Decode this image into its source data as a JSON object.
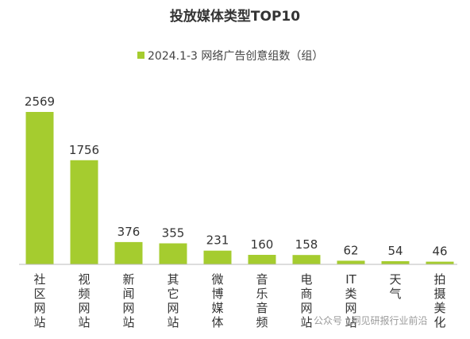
{
  "chart_data": {
    "type": "bar",
    "title": "投放媒体类型TOP10",
    "legend_position": "top-center",
    "grid": false,
    "bar_color": "#a5cc2f",
    "categories": [
      "社区网站",
      "视频网站",
      "新闻网站",
      "其它网站",
      "微博媒体",
      "音乐音频",
      "电商网站",
      "IT类网站",
      "天气",
      "拍摄美化"
    ],
    "series": [
      {
        "name": "2024.1-3 网络广告创意组数（组）",
        "values": [
          2569,
          1756,
          376,
          355,
          231,
          160,
          158,
          62,
          54,
          46
        ]
      }
    ],
    "xlabel": "",
    "ylabel": "",
    "ylim": [
      0,
      2569
    ]
  },
  "watermark": "公众号 · 洞见研报行业前沿"
}
